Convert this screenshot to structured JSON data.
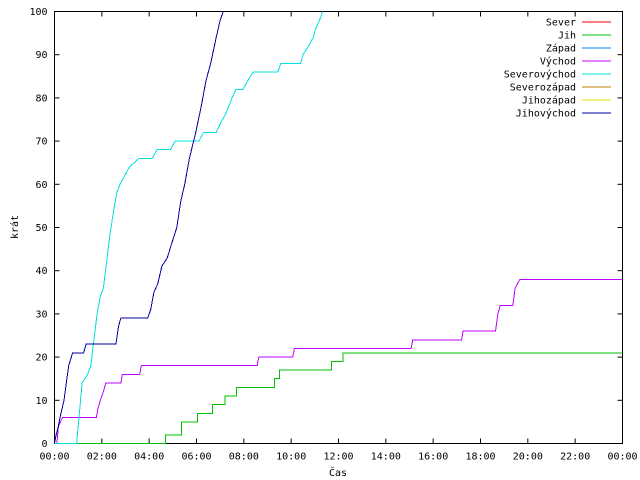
{
  "chart_data": {
    "type": "line",
    "title": "",
    "xlabel": "Čas",
    "ylabel": "krát",
    "xlim": [
      0,
      1440
    ],
    "ylim": [
      0,
      100
    ],
    "x_ticks": [
      {
        "value": 0,
        "label": "00:00"
      },
      {
        "value": 120,
        "label": "02:00"
      },
      {
        "value": 240,
        "label": "04:00"
      },
      {
        "value": 360,
        "label": "06:00"
      },
      {
        "value": 480,
        "label": "08:00"
      },
      {
        "value": 600,
        "label": "10:00"
      },
      {
        "value": 720,
        "label": "12:00"
      },
      {
        "value": 840,
        "label": "14:00"
      },
      {
        "value": 960,
        "label": "16:00"
      },
      {
        "value": 1080,
        "label": "18:00"
      },
      {
        "value": 1200,
        "label": "20:00"
      },
      {
        "value": 1320,
        "label": "22:00"
      },
      {
        "value": 1440,
        "label": "00:00"
      }
    ],
    "y_ticks": [
      0,
      10,
      20,
      30,
      40,
      50,
      60,
      70,
      80,
      90,
      100
    ],
    "grid": false,
    "legend_position": "top-right",
    "series": [
      {
        "name": "Sever",
        "color": "#ff0000",
        "points": []
      },
      {
        "name": "Jih",
        "color": "#00c000",
        "points": [
          [
            0,
            0
          ],
          [
            282,
            0
          ],
          [
            282,
            2
          ],
          [
            322,
            2
          ],
          [
            322,
            5
          ],
          [
            362,
            5
          ],
          [
            362,
            7
          ],
          [
            400,
            7
          ],
          [
            400,
            9
          ],
          [
            432,
            9
          ],
          [
            432,
            11
          ],
          [
            462,
            11
          ],
          [
            462,
            13
          ],
          [
            558,
            13
          ],
          [
            558,
            15
          ],
          [
            570,
            15
          ],
          [
            570,
            17
          ],
          [
            702,
            17
          ],
          [
            702,
            19
          ],
          [
            732,
            19
          ],
          [
            732,
            21
          ],
          [
            1440,
            21
          ]
        ]
      },
      {
        "name": "Západ",
        "color": "#0080ff",
        "points": []
      },
      {
        "name": "Východ",
        "color": "#c000ff",
        "points": [
          [
            6,
            0
          ],
          [
            10,
            4
          ],
          [
            20,
            6
          ],
          [
            106,
            6
          ],
          [
            110,
            8
          ],
          [
            116,
            10
          ],
          [
            124,
            12
          ],
          [
            130,
            14
          ],
          [
            168,
            14
          ],
          [
            172,
            16
          ],
          [
            216,
            16
          ],
          [
            220,
            18
          ],
          [
            514,
            18
          ],
          [
            518,
            20
          ],
          [
            604,
            20
          ],
          [
            608,
            22
          ],
          [
            904,
            22
          ],
          [
            908,
            24
          ],
          [
            1032,
            24
          ],
          [
            1036,
            26
          ],
          [
            1118,
            26
          ],
          [
            1124,
            30
          ],
          [
            1130,
            32
          ],
          [
            1162,
            32
          ],
          [
            1168,
            36
          ],
          [
            1180,
            38
          ],
          [
            1440,
            38
          ]
        ]
      },
      {
        "name": "Severovýchod",
        "color": "#00e0e0",
        "points": [
          [
            0,
            0
          ],
          [
            56,
            0
          ],
          [
            62,
            6
          ],
          [
            70,
            14
          ],
          [
            84,
            16
          ],
          [
            92,
            18
          ],
          [
            100,
            24
          ],
          [
            108,
            30
          ],
          [
            116,
            34
          ],
          [
            124,
            36
          ],
          [
            132,
            42
          ],
          [
            140,
            48
          ],
          [
            150,
            54
          ],
          [
            158,
            58
          ],
          [
            166,
            60
          ],
          [
            178,
            62
          ],
          [
            190,
            64
          ],
          [
            214,
            66
          ],
          [
            248,
            66
          ],
          [
            260,
            68
          ],
          [
            294,
            68
          ],
          [
            306,
            70
          ],
          [
            366,
            70
          ],
          [
            378,
            72
          ],
          [
            410,
            72
          ],
          [
            420,
            74
          ],
          [
            432,
            76
          ],
          [
            442,
            78
          ],
          [
            450,
            80
          ],
          [
            460,
            82
          ],
          [
            478,
            82
          ],
          [
            490,
            84
          ],
          [
            504,
            86
          ],
          [
            566,
            86
          ],
          [
            574,
            88
          ],
          [
            624,
            88
          ],
          [
            630,
            90
          ],
          [
            644,
            92
          ],
          [
            656,
            94
          ],
          [
            662,
            96
          ],
          [
            672,
            98
          ],
          [
            680,
            100
          ]
        ]
      },
      {
        "name": "Severozápad",
        "color": "#c08000",
        "points": []
      },
      {
        "name": "Jihozápad",
        "color": "#e0e000",
        "points": []
      },
      {
        "name": "Jihovýchod",
        "color": "#0000a0",
        "points": [
          [
            0,
            0
          ],
          [
            4,
            2
          ],
          [
            10,
            4
          ],
          [
            14,
            6
          ],
          [
            24,
            10
          ],
          [
            30,
            14
          ],
          [
            36,
            18
          ],
          [
            46,
            21
          ],
          [
            74,
            21
          ],
          [
            80,
            23
          ],
          [
            156,
            23
          ],
          [
            162,
            27
          ],
          [
            168,
            29
          ],
          [
            236,
            29
          ],
          [
            244,
            31
          ],
          [
            252,
            35
          ],
          [
            262,
            37
          ],
          [
            272,
            41
          ],
          [
            286,
            43
          ],
          [
            296,
            46
          ],
          [
            310,
            50
          ],
          [
            320,
            56
          ],
          [
            330,
            60
          ],
          [
            342,
            66
          ],
          [
            358,
            72
          ],
          [
            372,
            78
          ],
          [
            384,
            84
          ],
          [
            396,
            88
          ],
          [
            410,
            94
          ],
          [
            420,
            98
          ],
          [
            428,
            100
          ]
        ]
      }
    ]
  }
}
